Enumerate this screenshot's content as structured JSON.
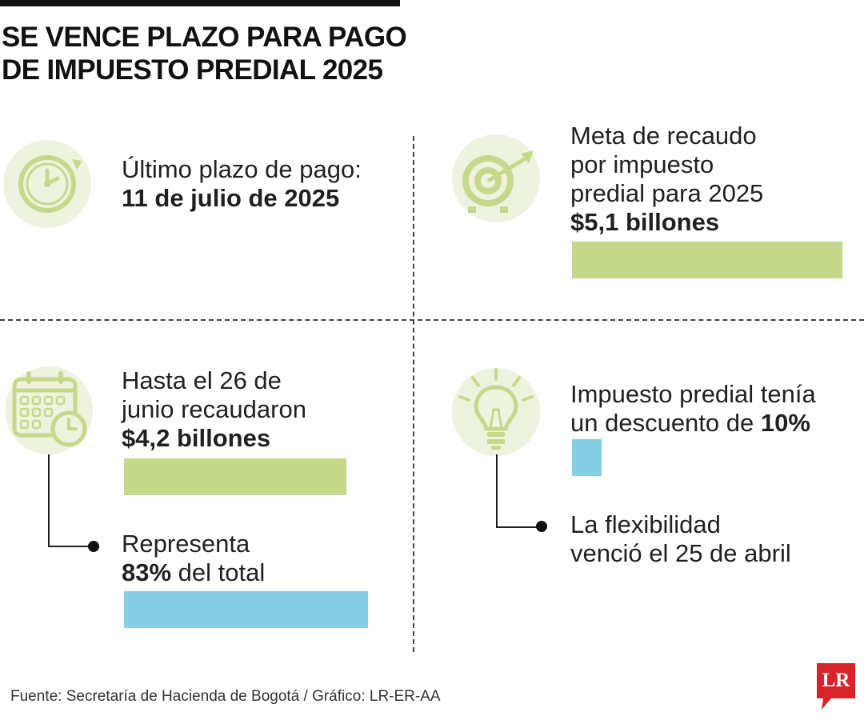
{
  "title": {
    "line1": "SE VENCE PLAZO PARA PAGO",
    "line2": "DE IMPUESTO PREDIAL 2025"
  },
  "deadline": {
    "icon": "clock-icon",
    "label": "Último plazo de pago:",
    "value": "11 de julio de 2025"
  },
  "goal": {
    "icon": "target-icon",
    "line1": "Meta de recaudo",
    "line2": "por impuesto",
    "line3": "predial para 2025",
    "value": "$5,1 billones",
    "amount_billions": 5.1
  },
  "collected": {
    "icon": "calendar-clock-icon",
    "line1": "Hasta el 26 de",
    "line2": "junio recaudaron",
    "value": "$4,2 billones",
    "amount_billions": 4.2
  },
  "share": {
    "line1": "Representa",
    "percent": "83%",
    "suffix": " del total",
    "fraction": 0.83
  },
  "discount": {
    "icon": "lightbulb-icon",
    "line1": "Impuesto predial tenía",
    "line2_prefix": "un descuento de ",
    "percent": "10%",
    "fraction": 0.1
  },
  "flexibility": {
    "line1": "La flexibilidad",
    "line2": "venció el 25 de abril"
  },
  "source": "Fuente: Secretaría de Hacienda de Bogotá / Gráfico: LR-ER-AA",
  "logo": "LR",
  "colors": {
    "green": "#c5d98a",
    "blue": "#86cde6",
    "icon_background": "#edf3df",
    "logo_red": "#d8232a"
  }
}
